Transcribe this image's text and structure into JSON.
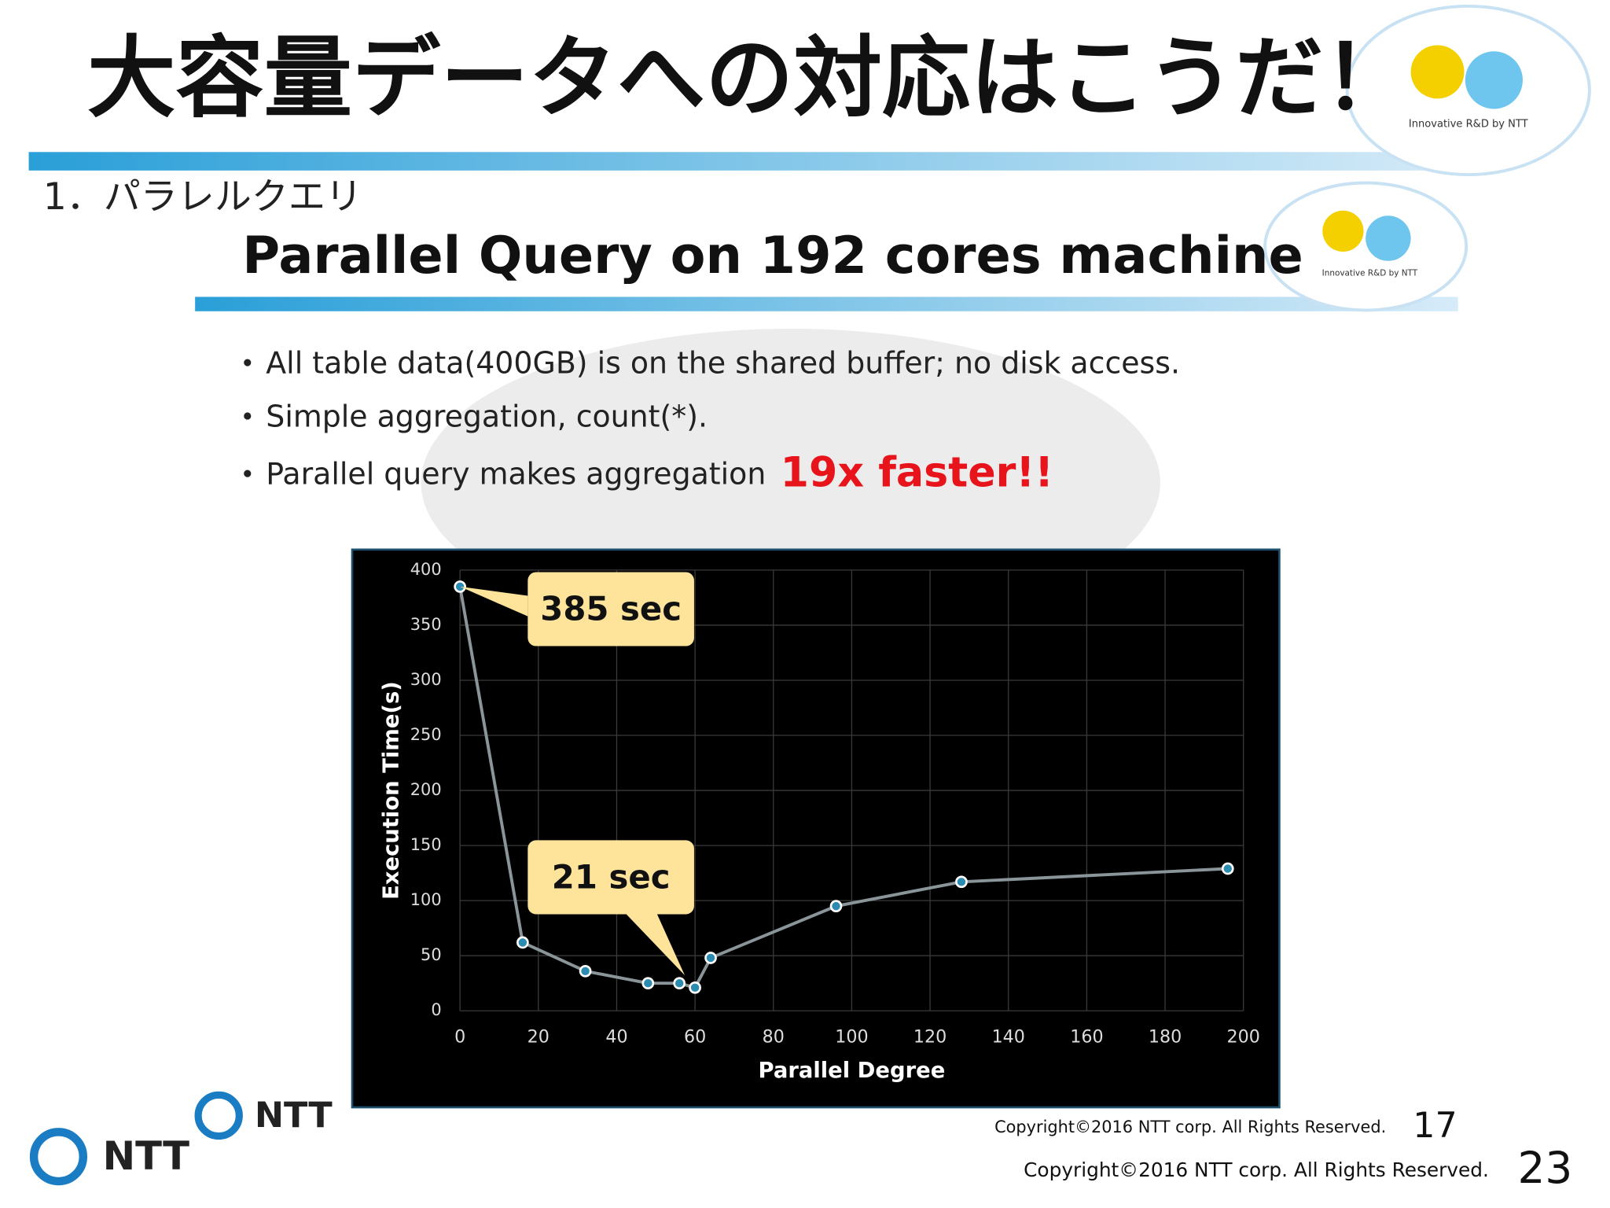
{
  "header": {
    "title": "大容量データへの対応はこうだ！",
    "logo_text": "Innovative R&D by NTT",
    "section": "1．パラレルクエリ",
    "subtitle": "Parallel Query on 192 cores machine",
    "sub_logo_text": "Innovative R&D by NTT"
  },
  "bullets": [
    "All table data(400GB) is on the shared buffer; no disk access.",
    "Simple aggregation, count(*).",
    "Parallel query makes aggregation"
  ],
  "highlight": "19x faster!!",
  "chart_data": {
    "type": "line",
    "xlabel": "Parallel Degree",
    "ylabel": "Execution Time(s)",
    "x": [
      0,
      16,
      32,
      48,
      56,
      60,
      64,
      96,
      128,
      196
    ],
    "values": [
      385,
      62,
      36,
      25,
      25,
      21,
      48,
      95,
      117,
      129
    ],
    "color": "#8a9599",
    "annotations": [
      "385 sec",
      "21 sec"
    ],
    "xlim": [
      0,
      200
    ],
    "xticks": [
      0,
      20,
      40,
      60,
      80,
      100,
      120,
      140,
      160,
      180,
      200
    ],
    "ylim": [
      0,
      400
    ],
    "yticks": [
      0,
      50,
      100,
      150,
      200,
      250,
      300,
      350,
      400
    ],
    "grid": true
  },
  "footer": {
    "logo": "NTT",
    "logo2": "NTT",
    "copyright": "Copyright©2016  NTT corp. All Rights Reserved.",
    "page": "17",
    "copyright2": "Copyright©2016  NTT corp. All Rights Reserved.",
    "page2": "23"
  }
}
